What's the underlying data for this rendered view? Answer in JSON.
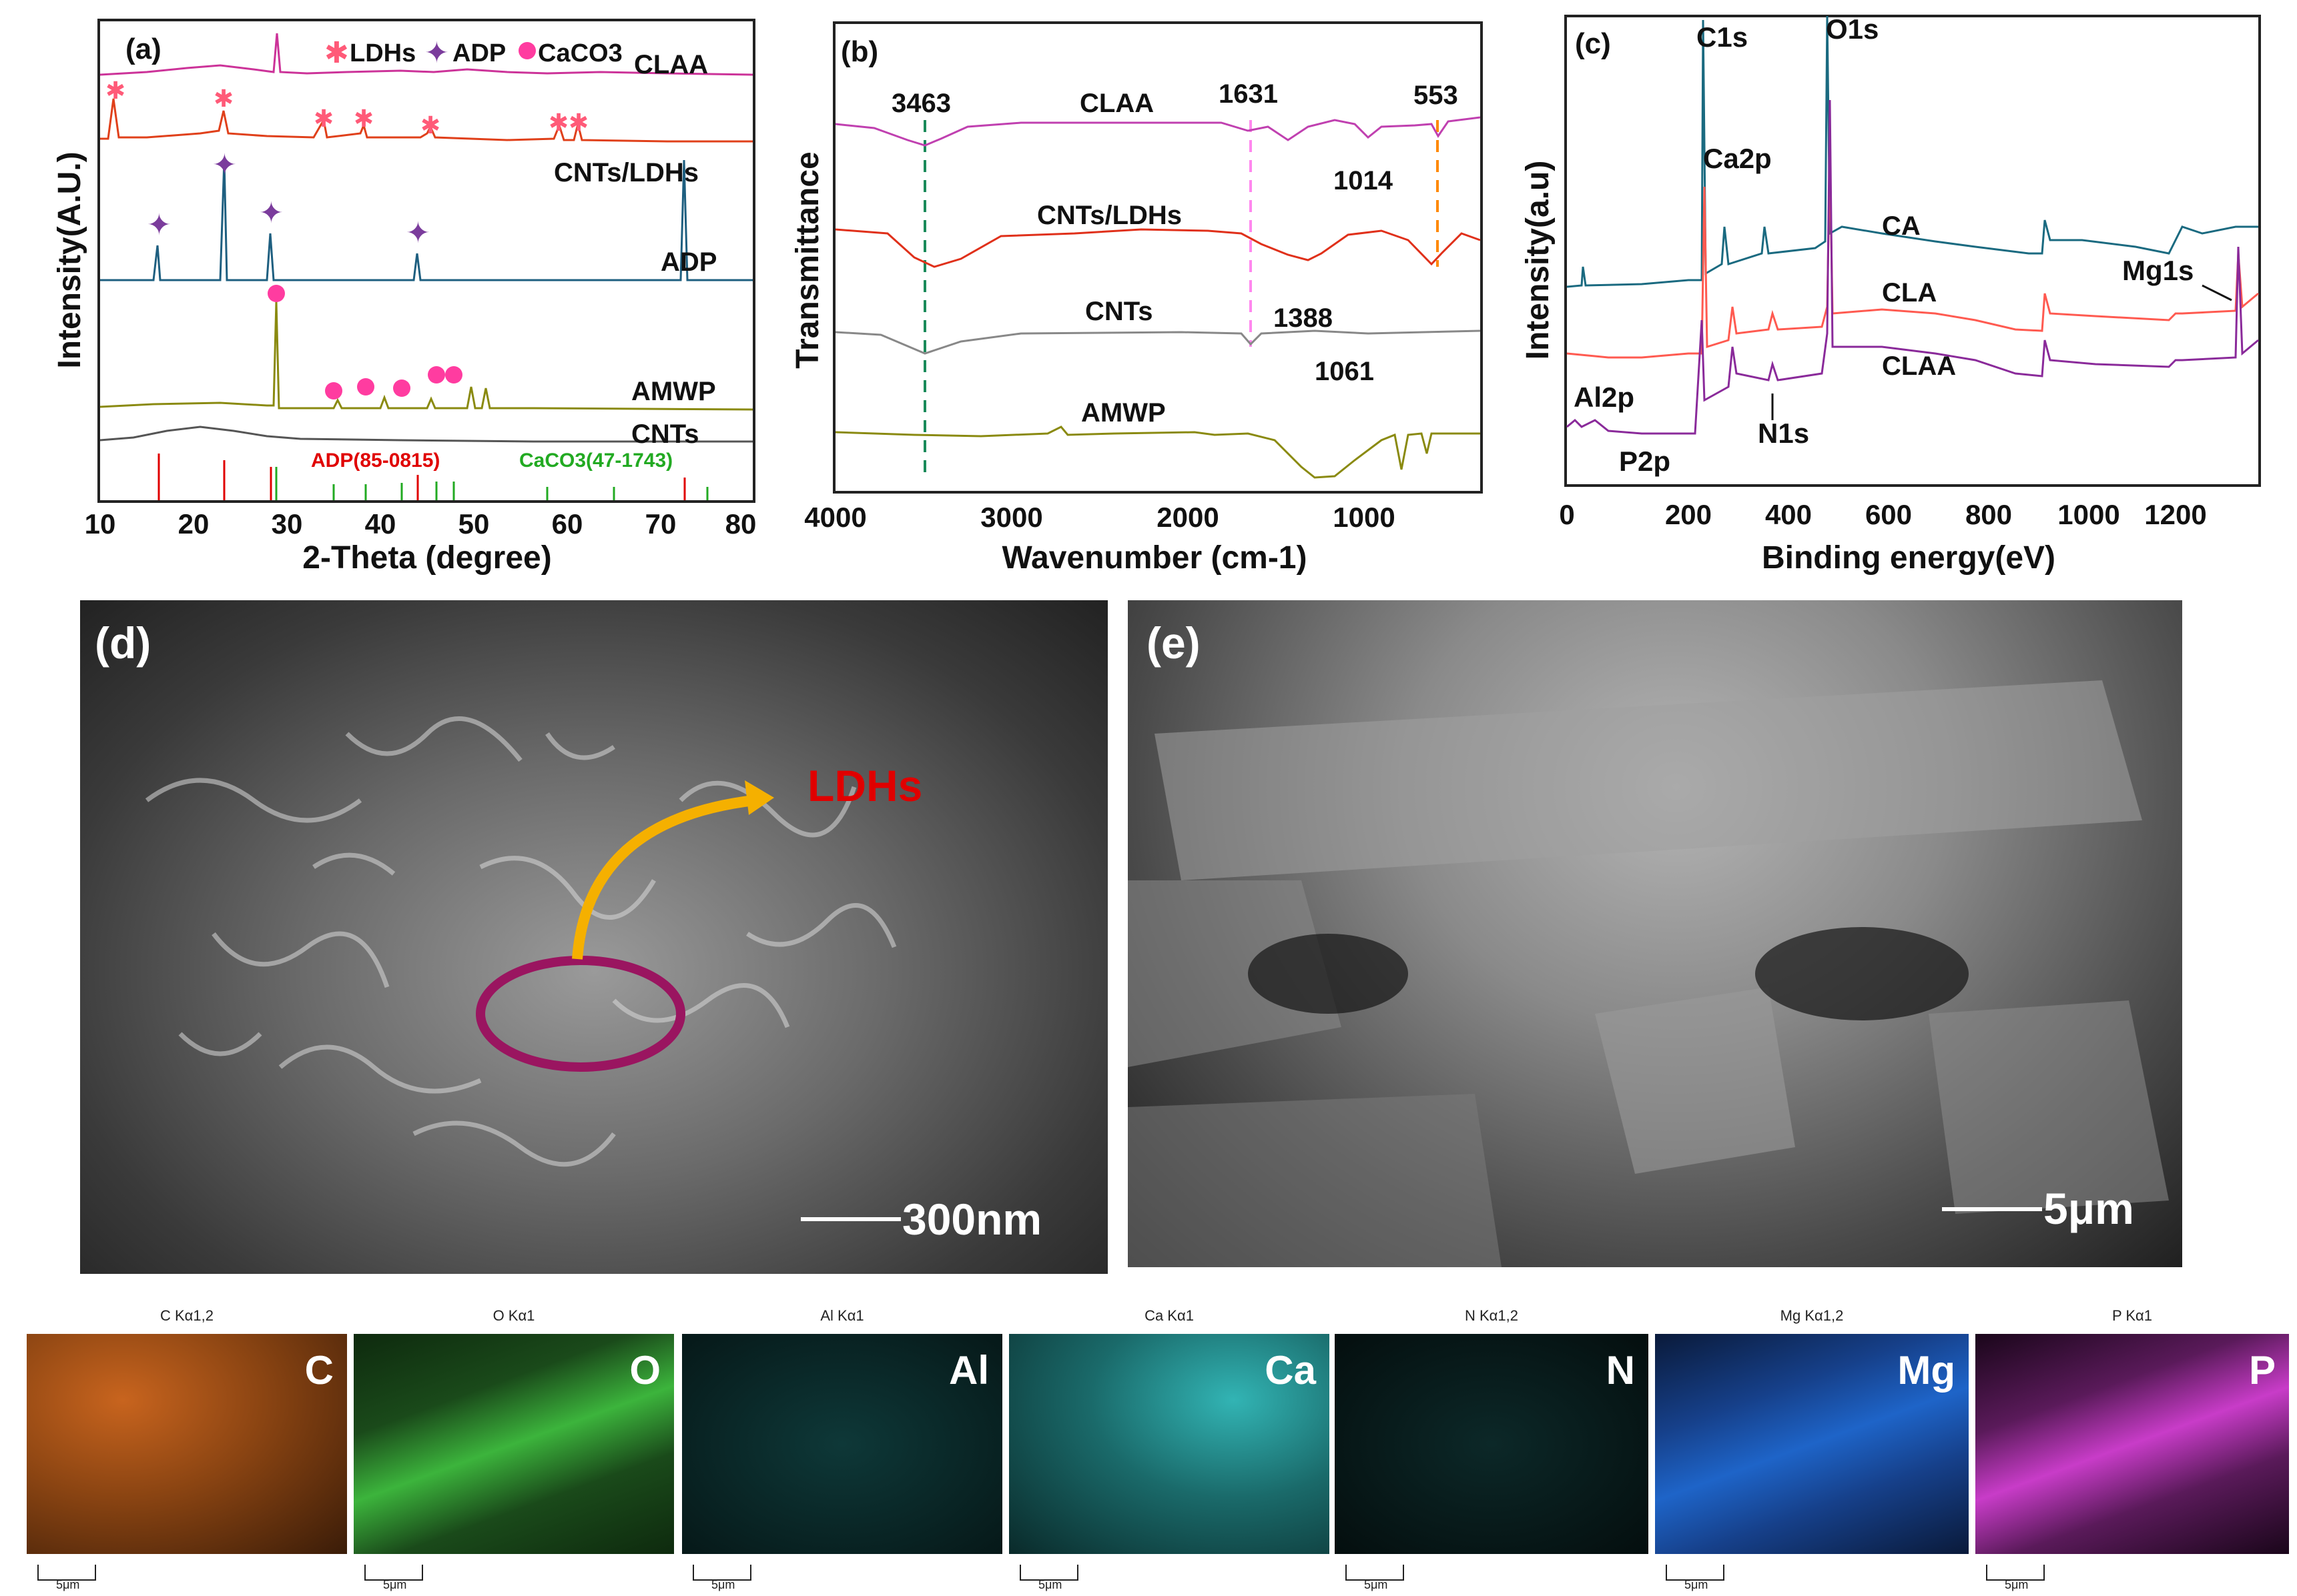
{
  "panel_a": {
    "label": "(a)",
    "legend": {
      "ldhs": "LDHs",
      "adp": "ADP",
      "caco3": "CaCO3"
    },
    "traces": [
      "CLAA",
      "CNTs/LDHs",
      "ADP",
      "AMWP",
      "CNTs"
    ],
    "ref_adp": "ADP(85-0815)",
    "ref_caco3": "CaCO3(47-1743)",
    "xlabel": "2-Theta (degree)",
    "ylabel": "Intensity(A.U.)",
    "xticks": [
      "10",
      "20",
      "30",
      "40",
      "50",
      "60",
      "70",
      "80"
    ]
  },
  "panel_b": {
    "label": "(b)",
    "traces": [
      "CLAA",
      "CNTs/LDHs",
      "CNTs",
      "AMWP"
    ],
    "peaks": [
      "3463",
      "1631",
      "553",
      "1014",
      "1388",
      "1061"
    ],
    "xlabel": "Wavenumber (cm-1)",
    "ylabel": "Transmittance",
    "xticks": [
      "4000",
      "3000",
      "2000",
      "1000"
    ]
  },
  "panel_c": {
    "label": "(c)",
    "traces": [
      "CA",
      "CLA",
      "CLAA"
    ],
    "peaks": [
      "C1s",
      "O1s",
      "Ca2p",
      "Mg1s",
      "Al2p",
      "P2p",
      "N1s"
    ],
    "xlabel": "Binding energy(eV)",
    "ylabel": "Intensity(a.u)",
    "xticks": [
      "0",
      "200",
      "400",
      "600",
      "800",
      "1000",
      "1200"
    ]
  },
  "panel_d": {
    "label": "(d)",
    "annotation": "LDHs",
    "scale": "300nm"
  },
  "panel_e": {
    "label": "(e)",
    "scale": "5μm"
  },
  "eds": [
    {
      "title": "C Kα1,2",
      "element": "C",
      "scale": "5μm",
      "color": "#c8641e"
    },
    {
      "title": "O Kα1",
      "element": "O",
      "scale": "5μm",
      "color": "#3cb43c"
    },
    {
      "title": "Al Kα1",
      "element": "Al",
      "scale": "5μm",
      "color": "#28aaaa"
    },
    {
      "title": "Ca Kα1",
      "element": "Ca",
      "scale": "5μm",
      "color": "#32b4b4"
    },
    {
      "title": "N Kα1,2",
      "element": "N",
      "scale": "5μm",
      "color": "#2a9a9a"
    },
    {
      "title": "Mg Kα1,2",
      "element": "Mg",
      "scale": "5μm",
      "color": "#1e64c8"
    },
    {
      "title": "P Kα1",
      "element": "P",
      "scale": "5μm",
      "color": "#c83cc8"
    }
  ]
}
